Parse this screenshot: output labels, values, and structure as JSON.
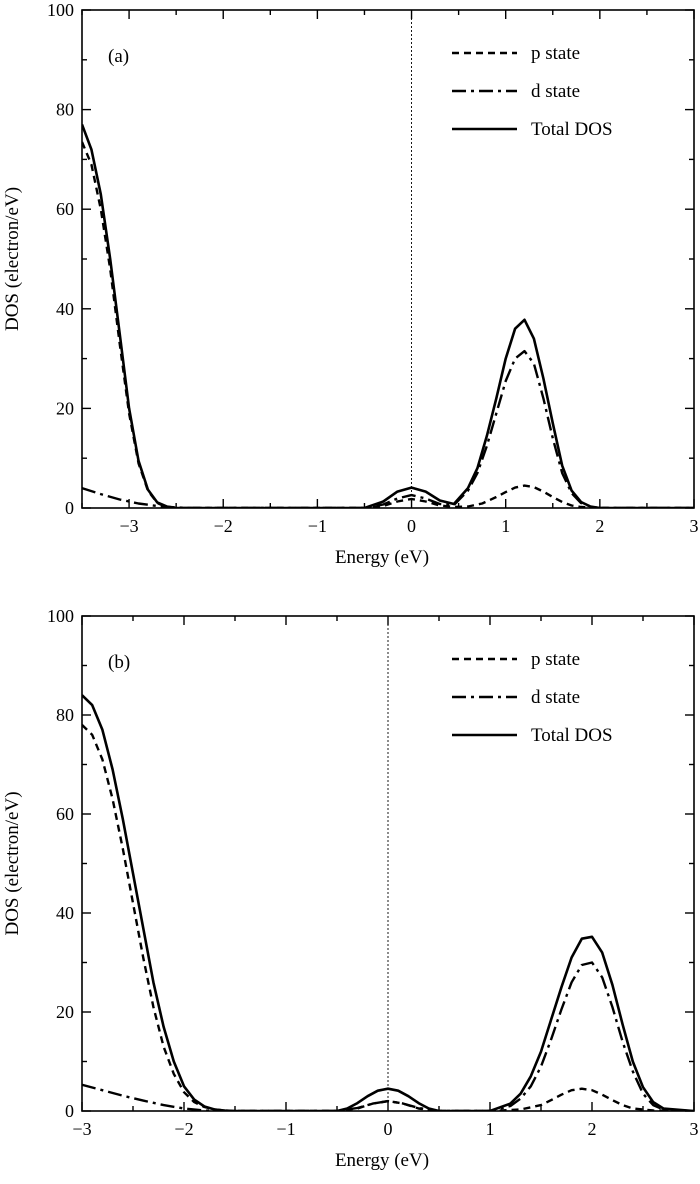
{
  "chart_data": [
    {
      "type": "line",
      "panel_label": "(a)",
      "xlabel": "Energy (eV)",
      "ylabel": "DOS (electron/eV)",
      "xlim": [
        -3.5,
        3
      ],
      "ylim": [
        0,
        100
      ],
      "x_ticks": [
        "−3",
        "−2",
        "−1",
        "0",
        "1",
        "2",
        "3"
      ],
      "y_ticks": [
        "0",
        "20",
        "40",
        "60",
        "80",
        "100"
      ],
      "fermi_level": 0,
      "legend_position": "top-right",
      "series": [
        {
          "name": "p state",
          "style": "dashed",
          "color": "#000000",
          "x": [
            -3.5,
            -3.4,
            -3.3,
            -3.2,
            -3.1,
            -3.0,
            -2.9,
            -2.8,
            -2.7,
            -2.6,
            -2.5,
            -2.4,
            -2.0,
            -1.0,
            -0.5,
            -0.3,
            -0.15,
            0.0,
            0.15,
            0.3,
            0.45,
            0.6,
            0.75,
            0.9,
            1.0,
            1.1,
            1.2,
            1.3,
            1.4,
            1.5,
            1.6,
            1.7,
            1.8,
            2.0,
            3.0
          ],
          "y": [
            73.5,
            69,
            60,
            48,
            33,
            19,
            9,
            3.5,
            1,
            0.2,
            0,
            0,
            0,
            0,
            0,
            0.4,
            1.3,
            1.8,
            1.3,
            0.5,
            0.2,
            0.3,
            0.9,
            2.2,
            3.2,
            4.1,
            4.5,
            4.2,
            3.3,
            2.2,
            1.2,
            0.5,
            0.2,
            0,
            0
          ]
        },
        {
          "name": "d state",
          "style": "dashdot",
          "color": "#000000",
          "x": [
            -3.5,
            -3.3,
            -3.1,
            -2.9,
            -2.7,
            -2.5,
            -2.3,
            -2.0,
            -1.0,
            -0.5,
            -0.3,
            -0.15,
            0.0,
            0.15,
            0.3,
            0.45,
            0.6,
            0.7,
            0.8,
            0.9,
            1.0,
            1.1,
            1.2,
            1.3,
            1.4,
            1.5,
            1.6,
            1.7,
            1.8,
            1.9,
            2.0,
            3.0
          ],
          "y": [
            4,
            2.8,
            1.7,
            0.9,
            0.4,
            0.1,
            0,
            0,
            0,
            0,
            0.7,
            1.9,
            2.6,
            1.9,
            0.8,
            0.6,
            3.5,
            7,
            12.5,
            19,
            25.5,
            30,
            31.5,
            29,
            22,
            14,
            7,
            3,
            1,
            0.3,
            0,
            0
          ]
        },
        {
          "name": "Total DOS",
          "style": "solid",
          "color": "#000000",
          "x": [
            -3.5,
            -3.4,
            -3.3,
            -3.2,
            -3.1,
            -3.0,
            -2.9,
            -2.8,
            -2.7,
            -2.6,
            -2.5,
            -2.4,
            -2.0,
            -1.0,
            -0.5,
            -0.3,
            -0.15,
            0.0,
            0.15,
            0.3,
            0.45,
            0.6,
            0.7,
            0.8,
            0.9,
            1.0,
            1.1,
            1.2,
            1.3,
            1.4,
            1.5,
            1.6,
            1.7,
            1.8,
            1.9,
            2.0,
            3.0
          ],
          "y": [
            77,
            72,
            63,
            50,
            35,
            20,
            9.5,
            3.7,
            1.1,
            0.3,
            0,
            0,
            0,
            0,
            0,
            1.3,
            3.3,
            4.1,
            3.3,
            1.5,
            0.8,
            4,
            8,
            14.5,
            22,
            30,
            36,
            37.8,
            34,
            26,
            17,
            8.5,
            3.5,
            1.2,
            0.3,
            0,
            0
          ]
        }
      ]
    },
    {
      "type": "line",
      "panel_label": "(b)",
      "xlabel": "Energy (eV)",
      "ylabel": "DOS (electron/eV)",
      "xlim": [
        -3,
        3
      ],
      "ylim": [
        0,
        100
      ],
      "x_ticks": [
        "−3",
        "−2",
        "−1",
        "0",
        "1",
        "2",
        "3"
      ],
      "y_ticks": [
        "0",
        "20",
        "40",
        "60",
        "80",
        "100"
      ],
      "fermi_level": 0,
      "legend_position": "top-right",
      "series": [
        {
          "name": "p state",
          "style": "dashed",
          "color": "#000000",
          "x": [
            -3.0,
            -2.9,
            -2.8,
            -2.7,
            -2.6,
            -2.5,
            -2.4,
            -2.3,
            -2.2,
            -2.1,
            -2.0,
            -1.9,
            -1.8,
            -1.7,
            -1.6,
            -1.5,
            -1.0,
            -0.5,
            -0.3,
            -0.15,
            0.0,
            0.15,
            0.3,
            0.5,
            1.0,
            1.3,
            1.5,
            1.6,
            1.7,
            1.8,
            1.9,
            2.0,
            2.1,
            2.2,
            2.3,
            2.4,
            2.6,
            3.0
          ],
          "y": [
            78,
            76,
            71,
            63,
            53,
            42,
            31,
            21,
            13,
            7.5,
            3.8,
            1.8,
            0.8,
            0.3,
            0.1,
            0,
            0,
            0,
            0.5,
            1.5,
            2,
            1.5,
            0.5,
            0,
            0,
            0.3,
            1.2,
            2.2,
            3.3,
            4.2,
            4.5,
            4.2,
            3.3,
            2.2,
            1.2,
            0.5,
            0.1,
            0
          ]
        },
        {
          "name": "d state",
          "style": "dashdot",
          "color": "#000000",
          "x": [
            -3.0,
            -2.8,
            -2.6,
            -2.4,
            -2.2,
            -2.0,
            -1.8,
            -1.5,
            -1.0,
            -0.5,
            -0.3,
            -0.15,
            0.0,
            0.15,
            0.3,
            0.5,
            1.0,
            1.2,
            1.3,
            1.4,
            1.5,
            1.6,
            1.7,
            1.8,
            1.9,
            2.0,
            2.1,
            2.2,
            2.3,
            2.4,
            2.5,
            2.6,
            2.7,
            3.0
          ],
          "y": [
            5.3,
            4.2,
            3.1,
            2.1,
            1.2,
            0.5,
            0.1,
            0,
            0,
            0,
            0.6,
            1.5,
            2,
            1.5,
            0.6,
            0,
            0,
            1,
            2.5,
            5,
            9,
            14.5,
            20.5,
            26,
            29.5,
            30,
            27,
            21,
            14,
            8,
            3.5,
            1.2,
            0.3,
            0
          ]
        },
        {
          "name": "Total DOS",
          "style": "solid",
          "color": "#000000",
          "x": [
            -3.0,
            -2.9,
            -2.8,
            -2.7,
            -2.6,
            -2.5,
            -2.4,
            -2.3,
            -2.2,
            -2.1,
            -2.0,
            -1.9,
            -1.8,
            -1.7,
            -1.6,
            -1.5,
            -1.0,
            -0.5,
            -0.4,
            -0.3,
            -0.2,
            -0.1,
            0.0,
            0.1,
            0.2,
            0.3,
            0.4,
            0.5,
            1.0,
            1.2,
            1.3,
            1.4,
            1.5,
            1.6,
            1.7,
            1.8,
            1.9,
            2.0,
            2.1,
            2.2,
            2.3,
            2.4,
            2.5,
            2.6,
            2.7,
            3.0
          ],
          "y": [
            84,
            82,
            77,
            69,
            59,
            48,
            37,
            26,
            17,
            10,
            5,
            2.3,
            0.9,
            0.3,
            0.1,
            0,
            0,
            0,
            0.5,
            1.6,
            3,
            4.1,
            4.5,
            4.1,
            3,
            1.6,
            0.5,
            0,
            0,
            1.5,
            3.5,
            7,
            12,
            18.5,
            25,
            31,
            34.8,
            35.2,
            32,
            25.5,
            17.5,
            10,
            4.8,
            1.8,
            0.5,
            0
          ]
        }
      ]
    }
  ]
}
